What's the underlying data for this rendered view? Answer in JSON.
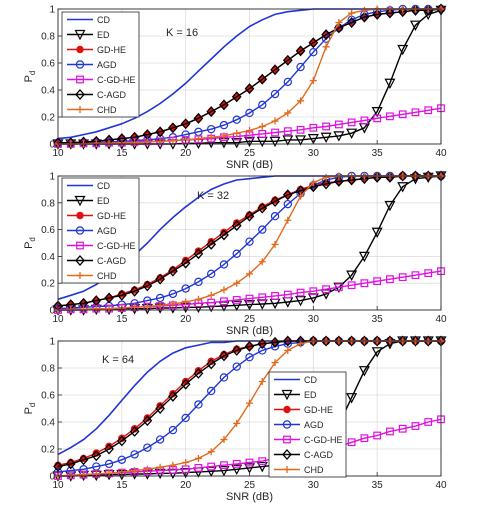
{
  "chart_data": [
    {
      "type": "line",
      "annotation": "K = 16",
      "xlabel": "SNR (dB)",
      "ylabel": "P",
      "ylabel_sub": "d",
      "xlim": [
        10,
        40
      ],
      "ylim": [
        0,
        1
      ],
      "xticks": [
        "10",
        "15",
        "20",
        "25",
        "30",
        "35",
        "40"
      ],
      "yticks": [
        "0",
        "0.2",
        "0.4",
        "0.6",
        "0.8",
        "1"
      ],
      "grid": true,
      "legend_position": "top-left",
      "x": [
        10,
        11,
        12,
        13,
        14,
        15,
        16,
        17,
        18,
        19,
        20,
        21,
        22,
        23,
        24,
        25,
        26,
        27,
        28,
        29,
        30,
        31,
        32,
        33,
        34,
        35,
        36,
        37,
        38,
        39,
        40
      ],
      "series": [
        {
          "name": "CD",
          "color": "#1f35d6",
          "marker": "none",
          "values": [
            0.04,
            0.05,
            0.07,
            0.09,
            0.12,
            0.15,
            0.19,
            0.24,
            0.3,
            0.37,
            0.45,
            0.54,
            0.63,
            0.72,
            0.8,
            0.87,
            0.92,
            0.96,
            0.98,
            0.99,
            1.0,
            1.0,
            1.0,
            1.0,
            1.0,
            1.0,
            1.0,
            1.0,
            1.0,
            1.0,
            1.0
          ]
        },
        {
          "name": "ED",
          "color": "#000000",
          "marker": "tri-down",
          "values": [
            0.0,
            0.0,
            0.0,
            0.0,
            0.0,
            0.0,
            0.0,
            0.0,
            0.0,
            0.0,
            0.005,
            0.005,
            0.01,
            0.01,
            0.01,
            0.02,
            0.02,
            0.02,
            0.03,
            0.03,
            0.04,
            0.05,
            0.06,
            0.08,
            0.12,
            0.24,
            0.45,
            0.7,
            0.88,
            0.96,
            0.99
          ]
        },
        {
          "name": "GD-HE",
          "color": "#e01010",
          "marker": "star",
          "values": [
            0.01,
            0.01,
            0.015,
            0.02,
            0.03,
            0.04,
            0.05,
            0.07,
            0.09,
            0.12,
            0.15,
            0.19,
            0.24,
            0.29,
            0.35,
            0.41,
            0.48,
            0.55,
            0.62,
            0.69,
            0.75,
            0.81,
            0.86,
            0.9,
            0.94,
            0.96,
            0.97,
            0.98,
            0.99,
            0.99,
            1.0
          ]
        },
        {
          "name": "AGD",
          "color": "#1f35d6",
          "marker": "circle",
          "values": [
            0.005,
            0.005,
            0.01,
            0.01,
            0.015,
            0.02,
            0.025,
            0.03,
            0.04,
            0.05,
            0.07,
            0.09,
            0.11,
            0.14,
            0.18,
            0.23,
            0.29,
            0.37,
            0.46,
            0.57,
            0.68,
            0.78,
            0.86,
            0.92,
            0.96,
            0.98,
            0.99,
            1.0,
            1.0,
            1.0,
            1.0
          ]
        },
        {
          "name": "C-GD-HE",
          "color": "#e010e0",
          "marker": "square",
          "values": [
            0.0,
            0.0,
            0.005,
            0.005,
            0.01,
            0.01,
            0.015,
            0.02,
            0.02,
            0.025,
            0.03,
            0.035,
            0.04,
            0.05,
            0.055,
            0.065,
            0.075,
            0.085,
            0.095,
            0.105,
            0.12,
            0.13,
            0.145,
            0.16,
            0.175,
            0.19,
            0.205,
            0.22,
            0.235,
            0.25,
            0.265
          ]
        },
        {
          "name": "C-AGD",
          "color": "#000000",
          "marker": "diamond",
          "values": [
            0.01,
            0.01,
            0.015,
            0.02,
            0.03,
            0.04,
            0.05,
            0.07,
            0.09,
            0.12,
            0.15,
            0.19,
            0.24,
            0.29,
            0.35,
            0.41,
            0.48,
            0.55,
            0.62,
            0.69,
            0.75,
            0.81,
            0.86,
            0.9,
            0.94,
            0.96,
            0.97,
            0.98,
            0.99,
            0.99,
            1.0
          ]
        },
        {
          "name": "CHD",
          "color": "#e06a1f",
          "marker": "plus",
          "values": [
            0.0,
            0.0,
            0.0,
            0.005,
            0.005,
            0.01,
            0.01,
            0.015,
            0.02,
            0.025,
            0.03,
            0.04,
            0.05,
            0.06,
            0.08,
            0.1,
            0.13,
            0.17,
            0.23,
            0.32,
            0.47,
            0.72,
            0.9,
            0.97,
            0.99,
            1.0,
            1.0,
            1.0,
            1.0,
            1.0,
            1.0
          ]
        }
      ]
    },
    {
      "type": "line",
      "annotation": "K = 32",
      "xlabel": "SNR (dB)",
      "ylabel": "P",
      "ylabel_sub": "d",
      "xlim": [
        10,
        40
      ],
      "ylim": [
        0,
        1
      ],
      "xticks": [
        "10",
        "15",
        "20",
        "25",
        "30",
        "35",
        "40"
      ],
      "yticks": [
        "0",
        "0.2",
        "0.4",
        "0.6",
        "0.8",
        "1"
      ],
      "grid": true,
      "legend_position": "top-left",
      "x": [
        10,
        11,
        12,
        13,
        14,
        15,
        16,
        17,
        18,
        19,
        20,
        21,
        22,
        23,
        24,
        25,
        26,
        27,
        28,
        29,
        30,
        31,
        32,
        33,
        34,
        35,
        36,
        37,
        38,
        39,
        40
      ],
      "series": [
        {
          "name": "CD",
          "color": "#1f35d6",
          "marker": "none",
          "values": [
            0.08,
            0.11,
            0.14,
            0.19,
            0.25,
            0.32,
            0.41,
            0.5,
            0.6,
            0.69,
            0.77,
            0.84,
            0.9,
            0.94,
            0.97,
            0.98,
            0.99,
            1.0,
            1.0,
            1.0,
            1.0,
            1.0,
            1.0,
            1.0,
            1.0,
            1.0,
            1.0,
            1.0,
            1.0,
            1.0,
            1.0
          ]
        },
        {
          "name": "ED",
          "color": "#000000",
          "marker": "tri-down",
          "values": [
            0.0,
            0.0,
            0.0,
            0.005,
            0.005,
            0.01,
            0.01,
            0.01,
            0.015,
            0.015,
            0.02,
            0.02,
            0.025,
            0.03,
            0.035,
            0.04,
            0.045,
            0.05,
            0.06,
            0.07,
            0.09,
            0.12,
            0.17,
            0.26,
            0.4,
            0.58,
            0.78,
            0.92,
            0.98,
            0.99,
            1.0
          ]
        },
        {
          "name": "GD-HE",
          "color": "#e01010",
          "marker": "star",
          "values": [
            0.03,
            0.04,
            0.05,
            0.07,
            0.09,
            0.12,
            0.15,
            0.19,
            0.24,
            0.3,
            0.37,
            0.44,
            0.51,
            0.58,
            0.65,
            0.71,
            0.77,
            0.82,
            0.86,
            0.9,
            0.93,
            0.95,
            0.96,
            0.97,
            0.98,
            0.99,
            0.99,
            1.0,
            1.0,
            1.0,
            1.0
          ]
        },
        {
          "name": "AGD",
          "color": "#1f35d6",
          "marker": "circle",
          "values": [
            0.01,
            0.015,
            0.02,
            0.025,
            0.03,
            0.04,
            0.05,
            0.07,
            0.09,
            0.12,
            0.16,
            0.21,
            0.27,
            0.34,
            0.42,
            0.51,
            0.6,
            0.7,
            0.79,
            0.87,
            0.93,
            0.97,
            0.99,
            1.0,
            1.0,
            1.0,
            1.0,
            1.0,
            1.0,
            1.0,
            1.0
          ]
        },
        {
          "name": "C-GD-HE",
          "color": "#e010e0",
          "marker": "square",
          "values": [
            0.0,
            0.005,
            0.005,
            0.01,
            0.01,
            0.015,
            0.02,
            0.025,
            0.03,
            0.035,
            0.04,
            0.05,
            0.055,
            0.065,
            0.075,
            0.085,
            0.095,
            0.105,
            0.115,
            0.13,
            0.14,
            0.155,
            0.17,
            0.185,
            0.2,
            0.215,
            0.23,
            0.245,
            0.26,
            0.275,
            0.29
          ]
        },
        {
          "name": "C-AGD",
          "color": "#000000",
          "marker": "diamond",
          "values": [
            0.03,
            0.04,
            0.05,
            0.07,
            0.09,
            0.11,
            0.14,
            0.18,
            0.23,
            0.29,
            0.35,
            0.42,
            0.49,
            0.56,
            0.63,
            0.7,
            0.76,
            0.81,
            0.86,
            0.89,
            0.92,
            0.94,
            0.96,
            0.97,
            0.98,
            0.99,
            0.99,
            1.0,
            1.0,
            1.0,
            1.0
          ]
        },
        {
          "name": "CHD",
          "color": "#e06a1f",
          "marker": "plus",
          "values": [
            0.0,
            0.005,
            0.005,
            0.01,
            0.01,
            0.015,
            0.02,
            0.025,
            0.035,
            0.045,
            0.06,
            0.08,
            0.11,
            0.15,
            0.2,
            0.27,
            0.36,
            0.49,
            0.67,
            0.85,
            0.95,
            0.99,
            1.0,
            1.0,
            1.0,
            1.0,
            1.0,
            1.0,
            1.0,
            1.0,
            1.0
          ]
        }
      ]
    },
    {
      "type": "line",
      "annotation": "K = 64",
      "xlabel": "SNR (dB)",
      "ylabel": "P",
      "ylabel_sub": "d",
      "xlim": [
        10,
        40
      ],
      "ylim": [
        0,
        1
      ],
      "xticks": [
        "10",
        "15",
        "20",
        "25",
        "30",
        "35",
        "40"
      ],
      "yticks": [
        "0",
        "0.2",
        "0.4",
        "0.6",
        "0.8",
        "1"
      ],
      "grid": true,
      "legend_position": "bottom-right",
      "x": [
        10,
        11,
        12,
        13,
        14,
        15,
        16,
        17,
        18,
        19,
        20,
        21,
        22,
        23,
        24,
        25,
        26,
        27,
        28,
        29,
        30,
        31,
        32,
        33,
        34,
        35,
        36,
        37,
        38,
        39,
        40
      ],
      "series": [
        {
          "name": "CD",
          "color": "#1f35d6",
          "marker": "none",
          "values": [
            0.16,
            0.21,
            0.27,
            0.35,
            0.45,
            0.56,
            0.67,
            0.77,
            0.85,
            0.91,
            0.95,
            0.97,
            0.99,
            0.99,
            1.0,
            1.0,
            1.0,
            1.0,
            1.0,
            1.0,
            1.0,
            1.0,
            1.0,
            1.0,
            1.0,
            1.0,
            1.0,
            1.0,
            1.0,
            1.0,
            1.0
          ]
        },
        {
          "name": "ED",
          "color": "#000000",
          "marker": "tri-down",
          "values": [
            0.0,
            0.0,
            0.005,
            0.005,
            0.01,
            0.01,
            0.015,
            0.015,
            0.02,
            0.02,
            0.025,
            0.03,
            0.035,
            0.04,
            0.05,
            0.06,
            0.07,
            0.08,
            0.1,
            0.12,
            0.15,
            0.22,
            0.38,
            0.58,
            0.78,
            0.92,
            0.98,
            1.0,
            1.0,
            1.0,
            1.0
          ]
        },
        {
          "name": "GD-HE",
          "color": "#e01010",
          "marker": "star",
          "values": [
            0.08,
            0.1,
            0.13,
            0.17,
            0.22,
            0.28,
            0.35,
            0.43,
            0.52,
            0.61,
            0.7,
            0.78,
            0.85,
            0.9,
            0.94,
            0.96,
            0.98,
            0.99,
            1.0,
            1.0,
            1.0,
            1.0,
            1.0,
            1.0,
            1.0,
            1.0,
            1.0,
            1.0,
            1.0,
            1.0,
            1.0
          ]
        },
        {
          "name": "AGD",
          "color": "#1f35d6",
          "marker": "circle",
          "values": [
            0.03,
            0.04,
            0.05,
            0.07,
            0.09,
            0.12,
            0.16,
            0.21,
            0.27,
            0.34,
            0.43,
            0.53,
            0.63,
            0.73,
            0.81,
            0.88,
            0.93,
            0.96,
            0.98,
            0.99,
            1.0,
            1.0,
            1.0,
            1.0,
            1.0,
            1.0,
            1.0,
            1.0,
            1.0,
            1.0,
            1.0
          ]
        },
        {
          "name": "C-GD-HE",
          "color": "#e010e0",
          "marker": "square",
          "values": [
            0.0,
            0.005,
            0.01,
            0.015,
            0.02,
            0.025,
            0.03,
            0.035,
            0.04,
            0.045,
            0.05,
            0.06,
            0.07,
            0.08,
            0.09,
            0.1,
            0.11,
            0.13,
            0.14,
            0.16,
            0.18,
            0.2,
            0.22,
            0.25,
            0.28,
            0.3,
            0.33,
            0.35,
            0.37,
            0.4,
            0.42
          ]
        },
        {
          "name": "C-AGD",
          "color": "#000000",
          "marker": "diamond",
          "values": [
            0.07,
            0.09,
            0.12,
            0.15,
            0.2,
            0.26,
            0.33,
            0.41,
            0.5,
            0.59,
            0.68,
            0.76,
            0.83,
            0.89,
            0.93,
            0.96,
            0.98,
            0.99,
            1.0,
            1.0,
            1.0,
            1.0,
            1.0,
            1.0,
            1.0,
            1.0,
            1.0,
            1.0,
            1.0,
            1.0,
            1.0
          ]
        },
        {
          "name": "CHD",
          "color": "#e06a1f",
          "marker": "plus",
          "values": [
            0.0,
            0.005,
            0.01,
            0.015,
            0.02,
            0.03,
            0.04,
            0.05,
            0.065,
            0.08,
            0.1,
            0.13,
            0.18,
            0.27,
            0.39,
            0.54,
            0.7,
            0.84,
            0.93,
            0.98,
            1.0,
            1.0,
            1.0,
            1.0,
            1.0,
            1.0,
            1.0,
            1.0,
            1.0,
            1.0,
            1.0
          ]
        }
      ]
    }
  ]
}
